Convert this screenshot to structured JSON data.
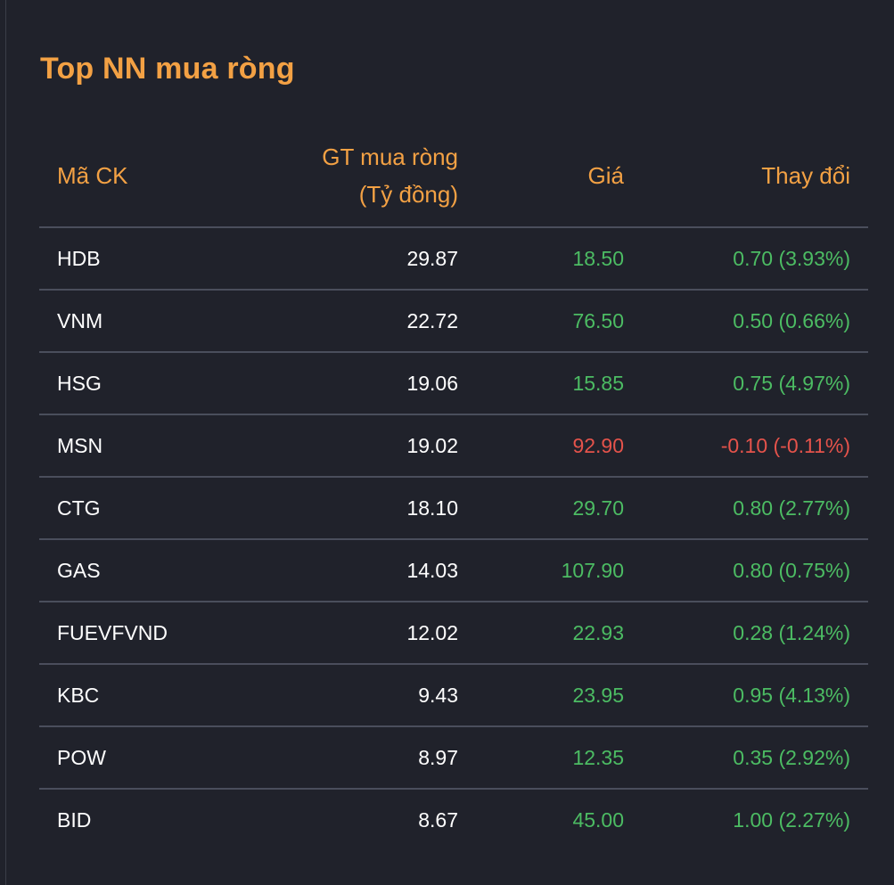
{
  "title": "Top NN mua ròng",
  "colors": {
    "accent": "#f3a144",
    "up": "#4cbc63",
    "down": "#e5534b",
    "background": "#20222b"
  },
  "columns": {
    "ticker": "Mã CK",
    "net_value_line1": "GT mua ròng",
    "net_value_line2": "(Tỷ đồng)",
    "price": "Giá",
    "change": "Thay đổi"
  },
  "rows": [
    {
      "ticker": "HDB",
      "net_value": "29.87",
      "price": "18.50",
      "change": "0.70 (3.93%)",
      "direction": "up"
    },
    {
      "ticker": "VNM",
      "net_value": "22.72",
      "price": "76.50",
      "change": "0.50 (0.66%)",
      "direction": "up"
    },
    {
      "ticker": "HSG",
      "net_value": "19.06",
      "price": "15.85",
      "change": "0.75 (4.97%)",
      "direction": "up"
    },
    {
      "ticker": "MSN",
      "net_value": "19.02",
      "price": "92.90",
      "change": "-0.10 (-0.11%)",
      "direction": "down"
    },
    {
      "ticker": "CTG",
      "net_value": "18.10",
      "price": "29.70",
      "change": "0.80 (2.77%)",
      "direction": "up"
    },
    {
      "ticker": "GAS",
      "net_value": "14.03",
      "price": "107.90",
      "change": "0.80 (0.75%)",
      "direction": "up"
    },
    {
      "ticker": "FUEVFVND",
      "net_value": "12.02",
      "price": "22.93",
      "change": "0.28 (1.24%)",
      "direction": "up"
    },
    {
      "ticker": "KBC",
      "net_value": "9.43",
      "price": "23.95",
      "change": "0.95 (4.13%)",
      "direction": "up"
    },
    {
      "ticker": "POW",
      "net_value": "8.97",
      "price": "12.35",
      "change": "0.35 (2.92%)",
      "direction": "up"
    },
    {
      "ticker": "BID",
      "net_value": "8.67",
      "price": "45.00",
      "change": "1.00 (2.27%)",
      "direction": "up"
    }
  ]
}
